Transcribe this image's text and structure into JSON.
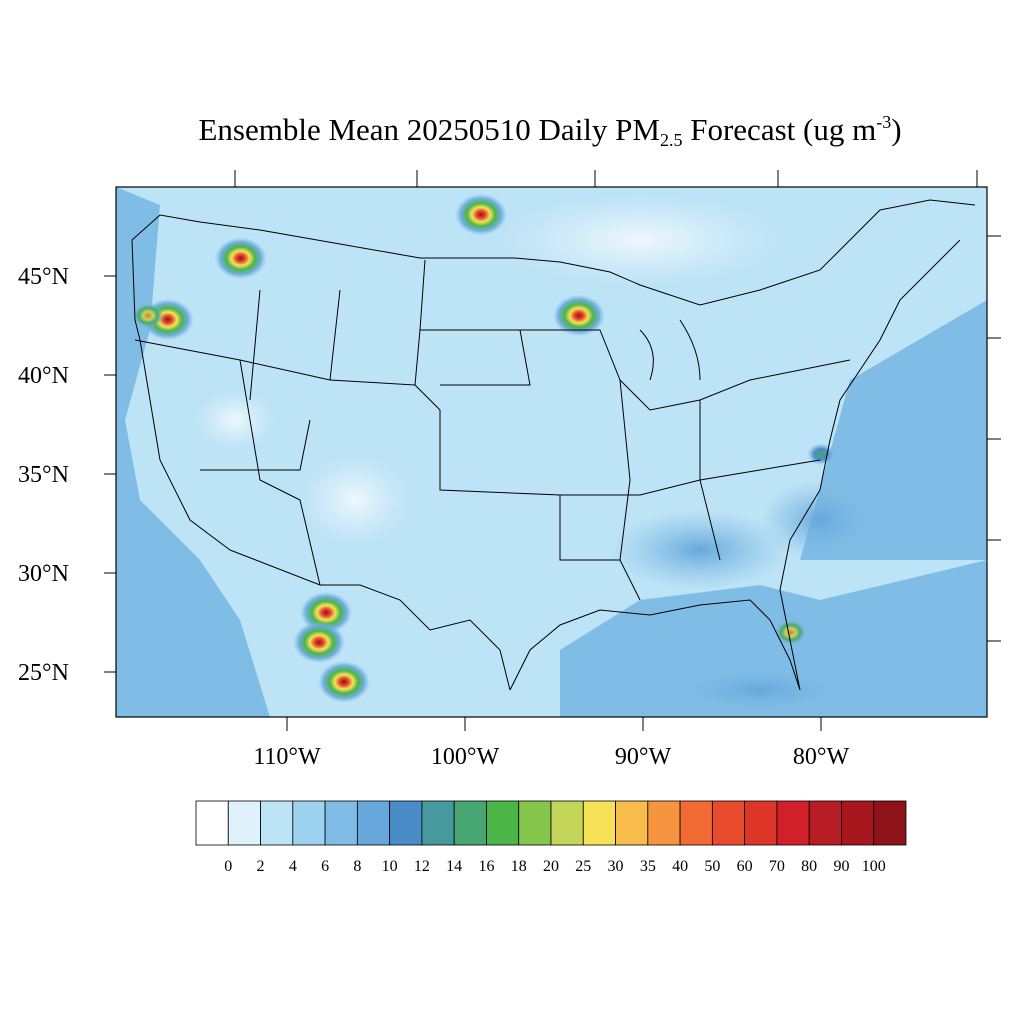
{
  "title": {
    "prefix": "Ensemble Mean 20250510 Daily PM",
    "subscript": "2.5",
    "middle": " Forecast (ug m",
    "superscript": "-3",
    "suffix": ")"
  },
  "map": {
    "region": "Continental United States",
    "lat_labels": [
      "45°N",
      "40°N",
      "35°N",
      "30°N",
      "25°N"
    ],
    "lon_labels": [
      "110°W",
      "100°W",
      "90°W",
      "80°W"
    ],
    "background_color": "#bde3f6"
  },
  "colorbar": {
    "labels": [
      "0",
      "2",
      "4",
      "6",
      "8",
      "10",
      "12",
      "14",
      "16",
      "18",
      "20",
      "25",
      "30",
      "35",
      "40",
      "50",
      "60",
      "70",
      "80",
      "90",
      "100"
    ],
    "colors": [
      "#ffffff",
      "#dff1fb",
      "#bde3f6",
      "#9dd3f0",
      "#80bde6",
      "#66a8dc",
      "#4a8cc8",
      "#46999c",
      "#47a672",
      "#4bb548",
      "#84c64c",
      "#c3d65a",
      "#f7e257",
      "#f8bc4b",
      "#f7943f",
      "#f26a34",
      "#e74b2c",
      "#dd3528",
      "#d1202a",
      "#b71c24",
      "#a8161e",
      "#8e1319"
    ]
  },
  "hotspots": [
    {
      "name": "fire-nw-montana",
      "lon": -112.6,
      "lat": 45.9,
      "level": "high"
    },
    {
      "name": "fire-manitoba-border",
      "lon": -99.1,
      "lat": 48.1,
      "level": "high"
    },
    {
      "name": "fire-minnesota",
      "lon": -93.6,
      "lat": 43.0,
      "level": "high"
    },
    {
      "name": "fire-oregon-1",
      "lon": -116.7,
      "lat": 42.8,
      "level": "high"
    },
    {
      "name": "fire-oregon-2",
      "lon": -117.8,
      "lat": 43.0,
      "level": "medium"
    },
    {
      "name": "fire-chihuahua-1",
      "lon": -107.8,
      "lat": 28.0,
      "level": "high"
    },
    {
      "name": "fire-chihuahua-2",
      "lon": -108.2,
      "lat": 26.5,
      "level": "high"
    },
    {
      "name": "fire-durango",
      "lon": -106.8,
      "lat": 24.5,
      "level": "high"
    },
    {
      "name": "fire-florida",
      "lon": -81.7,
      "lat": 27.0,
      "level": "medium"
    },
    {
      "name": "fire-nc-coast",
      "lon": -80.0,
      "lat": 36.0,
      "level": "low"
    }
  ]
}
